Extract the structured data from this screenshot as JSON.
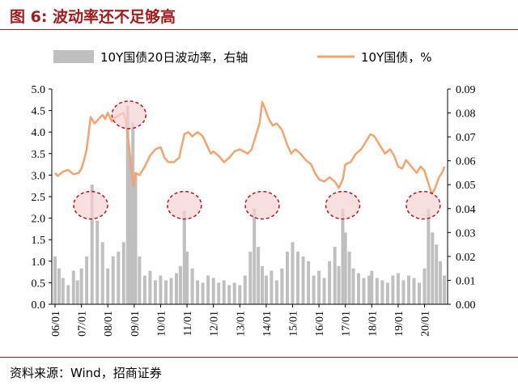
{
  "header": {
    "title": "图 6: 波动率还不足够高"
  },
  "footer": {
    "source": "资料来源：Wind，招商证券"
  },
  "colors": {
    "bars": "#bfbfbf",
    "line": "#f4a36c",
    "circle_fill": "#f7d3d3",
    "circle_stroke": "#c0111d",
    "accent": "#a31c1c"
  },
  "chart_data": {
    "type": "bar",
    "legend": [
      "10Y国债20日波动率，右轴",
      "10Y国债，%"
    ],
    "legend_position": "top",
    "grid": false,
    "x_tick_labels": [
      "06/01",
      "07/01",
      "08/01",
      "09/01",
      "10/01",
      "11/01",
      "12/01",
      "13/01",
      "14/01",
      "15/01",
      "16/01",
      "17/01",
      "18/01",
      "19/01",
      "20/01"
    ],
    "x_range": [
      2006.0,
      2020.75
    ],
    "y_left": {
      "ticks": [
        "0.0",
        "0.5",
        "1.0",
        "1.5",
        "2.0",
        "2.5",
        "3.0",
        "3.5",
        "4.0",
        "4.5",
        "5.0"
      ],
      "range": [
        0,
        5
      ]
    },
    "y_right": {
      "ticks": [
        "0.00",
        "0.01",
        "0.02",
        "0.03",
        "0.04",
        "0.05",
        "0.06",
        "0.07",
        "0.08",
        "0.09"
      ],
      "range": [
        0,
        0.09
      ]
    },
    "series": [
      {
        "name": "10Y国债20日波动率，右轴",
        "type": "bar",
        "axis": "right",
        "points": [
          [
            2006.0,
            0.02
          ],
          [
            2006.15,
            0.015
          ],
          [
            2006.3,
            0.011
          ],
          [
            2006.5,
            0.008
          ],
          [
            2006.7,
            0.014
          ],
          [
            2006.85,
            0.01
          ],
          [
            2007.0,
            0.015
          ],
          [
            2007.2,
            0.02
          ],
          [
            2007.4,
            0.05
          ],
          [
            2007.6,
            0.035
          ],
          [
            2007.8,
            0.026
          ],
          [
            2008.0,
            0.015
          ],
          [
            2008.2,
            0.02
          ],
          [
            2008.4,
            0.022
          ],
          [
            2008.6,
            0.026
          ],
          [
            2008.75,
            0.083
          ],
          [
            2008.85,
            0.062
          ],
          [
            2008.95,
            0.076
          ],
          [
            2009.05,
            0.055
          ],
          [
            2009.2,
            0.02
          ],
          [
            2009.4,
            0.012
          ],
          [
            2009.6,
            0.014
          ],
          [
            2009.8,
            0.01
          ],
          [
            2010.0,
            0.012
          ],
          [
            2010.2,
            0.01
          ],
          [
            2010.4,
            0.011
          ],
          [
            2010.6,
            0.013
          ],
          [
            2010.75,
            0.016
          ],
          [
            2010.9,
            0.039
          ],
          [
            2011.0,
            0.022
          ],
          [
            2011.2,
            0.015
          ],
          [
            2011.4,
            0.01
          ],
          [
            2011.6,
            0.009
          ],
          [
            2011.8,
            0.012
          ],
          [
            2012.0,
            0.011
          ],
          [
            2012.2,
            0.009
          ],
          [
            2012.4,
            0.01
          ],
          [
            2012.6,
            0.008
          ],
          [
            2012.8,
            0.009
          ],
          [
            2013.0,
            0.008
          ],
          [
            2013.2,
            0.012
          ],
          [
            2013.4,
            0.022
          ],
          [
            2013.55,
            0.04
          ],
          [
            2013.7,
            0.024
          ],
          [
            2013.85,
            0.016
          ],
          [
            2014.0,
            0.012
          ],
          [
            2014.2,
            0.014
          ],
          [
            2014.4,
            0.01
          ],
          [
            2014.6,
            0.015
          ],
          [
            2014.8,
            0.022
          ],
          [
            2015.0,
            0.026
          ],
          [
            2015.2,
            0.022
          ],
          [
            2015.4,
            0.02
          ],
          [
            2015.6,
            0.018
          ],
          [
            2015.8,
            0.012
          ],
          [
            2016.0,
            0.014
          ],
          [
            2016.2,
            0.011
          ],
          [
            2016.4,
            0.018
          ],
          [
            2016.6,
            0.024
          ],
          [
            2016.75,
            0.016
          ],
          [
            2016.9,
            0.04
          ],
          [
            2017.0,
            0.03
          ],
          [
            2017.15,
            0.022
          ],
          [
            2017.3,
            0.015
          ],
          [
            2017.5,
            0.013
          ],
          [
            2017.7,
            0.011
          ],
          [
            2017.9,
            0.012
          ],
          [
            2018.0,
            0.014
          ],
          [
            2018.2,
            0.011
          ],
          [
            2018.4,
            0.01
          ],
          [
            2018.6,
            0.009
          ],
          [
            2018.8,
            0.012
          ],
          [
            2019.0,
            0.013
          ],
          [
            2019.2,
            0.01
          ],
          [
            2019.4,
            0.012
          ],
          [
            2019.6,
            0.011
          ],
          [
            2019.8,
            0.009
          ],
          [
            2020.0,
            0.015
          ],
          [
            2020.15,
            0.04
          ],
          [
            2020.3,
            0.03
          ],
          [
            2020.45,
            0.025
          ],
          [
            2020.6,
            0.018
          ],
          [
            2020.75,
            0.012
          ]
        ]
      },
      {
        "name": "10Y国债，%",
        "type": "line",
        "axis": "left",
        "points": [
          [
            2006.0,
            3.05
          ],
          [
            2006.1,
            2.98
          ],
          [
            2006.3,
            3.08
          ],
          [
            2006.5,
            3.12
          ],
          [
            2006.7,
            3.02
          ],
          [
            2006.9,
            3.05
          ],
          [
            2007.0,
            3.15
          ],
          [
            2007.1,
            3.35
          ],
          [
            2007.2,
            3.6
          ],
          [
            2007.35,
            4.35
          ],
          [
            2007.5,
            4.2
          ],
          [
            2007.65,
            4.3
          ],
          [
            2007.8,
            4.4
          ],
          [
            2007.9,
            4.3
          ],
          [
            2008.0,
            4.45
          ],
          [
            2008.15,
            4.25
          ],
          [
            2008.3,
            4.35
          ],
          [
            2008.45,
            4.4
          ],
          [
            2008.6,
            4.45
          ],
          [
            2008.7,
            4.2
          ],
          [
            2008.8,
            3.7
          ],
          [
            2008.9,
            3.1
          ],
          [
            2008.97,
            2.75
          ],
          [
            2009.05,
            3.05
          ],
          [
            2009.2,
            3.0
          ],
          [
            2009.4,
            3.2
          ],
          [
            2009.6,
            3.45
          ],
          [
            2009.8,
            3.6
          ],
          [
            2010.0,
            3.65
          ],
          [
            2010.15,
            3.4
          ],
          [
            2010.3,
            3.3
          ],
          [
            2010.5,
            3.3
          ],
          [
            2010.7,
            3.4
          ],
          [
            2010.9,
            3.95
          ],
          [
            2011.05,
            4.0
          ],
          [
            2011.2,
            3.9
          ],
          [
            2011.4,
            4.0
          ],
          [
            2011.6,
            3.9
          ],
          [
            2011.75,
            3.7
          ],
          [
            2011.9,
            3.5
          ],
          [
            2012.0,
            3.55
          ],
          [
            2012.2,
            3.45
          ],
          [
            2012.4,
            3.3
          ],
          [
            2012.6,
            3.4
          ],
          [
            2012.8,
            3.55
          ],
          [
            2013.0,
            3.6
          ],
          [
            2013.15,
            3.55
          ],
          [
            2013.3,
            3.5
          ],
          [
            2013.45,
            3.6
          ],
          [
            2013.6,
            3.9
          ],
          [
            2013.75,
            4.2
          ],
          [
            2013.85,
            4.7
          ],
          [
            2013.95,
            4.55
          ],
          [
            2014.1,
            4.3
          ],
          [
            2014.25,
            4.15
          ],
          [
            2014.4,
            4.2
          ],
          [
            2014.6,
            4.05
          ],
          [
            2014.8,
            3.7
          ],
          [
            2014.95,
            3.5
          ],
          [
            2015.1,
            3.6
          ],
          [
            2015.3,
            3.5
          ],
          [
            2015.5,
            3.35
          ],
          [
            2015.7,
            3.25
          ],
          [
            2015.85,
            3.05
          ],
          [
            2016.0,
            2.9
          ],
          [
            2016.2,
            2.85
          ],
          [
            2016.4,
            2.95
          ],
          [
            2016.6,
            2.85
          ],
          [
            2016.75,
            2.7
          ],
          [
            2016.9,
            2.9
          ],
          [
            2017.0,
            3.25
          ],
          [
            2017.2,
            3.3
          ],
          [
            2017.4,
            3.5
          ],
          [
            2017.6,
            3.6
          ],
          [
            2017.8,
            3.8
          ],
          [
            2017.95,
            3.95
          ],
          [
            2018.1,
            3.9
          ],
          [
            2018.3,
            3.7
          ],
          [
            2018.5,
            3.5
          ],
          [
            2018.7,
            3.6
          ],
          [
            2018.85,
            3.45
          ],
          [
            2019.0,
            3.2
          ],
          [
            2019.15,
            3.15
          ],
          [
            2019.3,
            3.35
          ],
          [
            2019.5,
            3.2
          ],
          [
            2019.7,
            3.05
          ],
          [
            2019.85,
            3.2
          ],
          [
            2020.0,
            3.1
          ],
          [
            2020.15,
            2.8
          ],
          [
            2020.28,
            2.55
          ],
          [
            2020.4,
            2.7
          ],
          [
            2020.55,
            2.95
          ],
          [
            2020.7,
            3.1
          ],
          [
            2020.75,
            3.2
          ]
        ]
      }
    ],
    "annotations": [
      {
        "type": "circle",
        "x": 2008.8,
        "y": 4.4,
        "axis": "left"
      },
      {
        "type": "circle",
        "x": 2007.35,
        "y": 2.3,
        "axis": "left"
      },
      {
        "type": "circle",
        "x": 2010.9,
        "y": 2.3,
        "axis": "left"
      },
      {
        "type": "circle",
        "x": 2013.85,
        "y": 2.3,
        "axis": "left"
      },
      {
        "type": "circle",
        "x": 2016.9,
        "y": 2.3,
        "axis": "left"
      },
      {
        "type": "circle",
        "x": 2019.95,
        "y": 2.3,
        "axis": "left"
      }
    ]
  }
}
